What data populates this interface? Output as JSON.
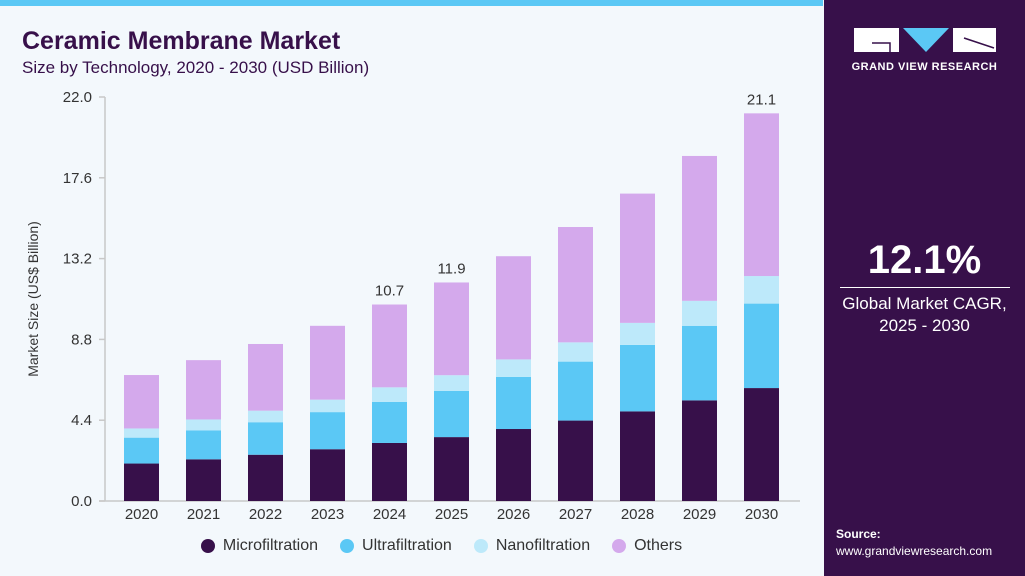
{
  "header": {
    "title": "Ceramic Membrane Market",
    "subtitle": "Size by Technology, 2020 - 2030 (USD Billion)"
  },
  "sidebar": {
    "brand": "GRAND VIEW RESEARCH",
    "cagr_value": "12.1%",
    "cagr_label_line1": "Global Market CAGR,",
    "cagr_label_line2": "2025 - 2030",
    "source_label": "Source:",
    "source_url": "www.grandviewresearch.com"
  },
  "colors": {
    "brand_dark": "#37104a",
    "accent": "#5bc8f5",
    "background": "#f3f8fc"
  },
  "chart_data": {
    "type": "bar",
    "stacked": true,
    "ylabel": "Market Size (US$ Billion)",
    "xlabel": "",
    "ylim": [
      0,
      22
    ],
    "yticks": [
      "0.0",
      "4.4",
      "8.8",
      "13.2",
      "17.6",
      "22.0"
    ],
    "categories": [
      "2020",
      "2021",
      "2022",
      "2023",
      "2024",
      "2025",
      "2026",
      "2027",
      "2028",
      "2029",
      "2030"
    ],
    "series": [
      {
        "name": "Microfiltration",
        "color": "#37104a",
        "values": [
          2.04,
          2.27,
          2.52,
          2.82,
          3.16,
          3.48,
          3.92,
          4.38,
          4.88,
          5.48,
          6.15
        ]
      },
      {
        "name": "Ultrafiltration",
        "color": "#5bc8f5",
        "values": [
          1.41,
          1.57,
          1.77,
          2.02,
          2.24,
          2.51,
          2.84,
          3.21,
          3.62,
          4.06,
          4.6
        ]
      },
      {
        "name": "Nanofiltration",
        "color": "#bde9fa",
        "values": [
          0.5,
          0.6,
          0.63,
          0.68,
          0.79,
          0.86,
          0.95,
          1.05,
          1.2,
          1.36,
          1.5
        ]
      },
      {
        "name": "Others",
        "color": "#d4a9ec",
        "values": [
          2.91,
          3.23,
          3.63,
          4.02,
          4.51,
          5.05,
          5.62,
          6.28,
          7.04,
          7.89,
          8.86
        ]
      }
    ],
    "data_labels": {
      "2024": "10.7",
      "2025": "11.9",
      "2030": "21.1"
    },
    "legend_position": "bottom",
    "grid": false
  }
}
